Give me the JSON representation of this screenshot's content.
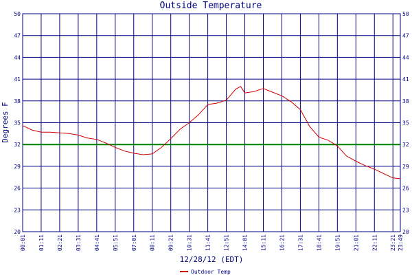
{
  "chart_data": {
    "type": "line",
    "title": "Outside Temperature",
    "xlabel": "12/28/12 (EDT)",
    "ylabel": "Degrees F",
    "ylim": [
      20,
      50
    ],
    "yticks": [
      20,
      23,
      26,
      29,
      32,
      35,
      38,
      41,
      44,
      47,
      50
    ],
    "xticks": [
      "00:01",
      "01:11",
      "02:21",
      "03:31",
      "04:41",
      "05:51",
      "07:01",
      "08:11",
      "09:21",
      "10:31",
      "11:41",
      "12:51",
      "14:01",
      "15:11",
      "16:21",
      "17:31",
      "18:41",
      "19:51",
      "21:01",
      "22:11",
      "23:21",
      "23:49"
    ],
    "grid": true,
    "legend_position": "bottom-left",
    "reference_line": {
      "value": 32,
      "color": "#008000"
    },
    "series": [
      {
        "name": "Outdoor Temp",
        "color": "#cc0000",
        "x": [
          "00:01",
          "00:36",
          "01:11",
          "01:46",
          "02:21",
          "02:56",
          "03:31",
          "04:06",
          "04:41",
          "05:16",
          "05:51",
          "06:26",
          "07:01",
          "07:36",
          "08:11",
          "08:46",
          "09:21",
          "09:56",
          "10:31",
          "11:06",
          "11:41",
          "12:16",
          "12:51",
          "13:26",
          "13:45",
          "14:01",
          "14:36",
          "15:11",
          "15:46",
          "16:21",
          "16:56",
          "17:31",
          "18:06",
          "18:41",
          "19:16",
          "19:51",
          "20:26",
          "21:01",
          "21:36",
          "22:11",
          "22:46",
          "23:21",
          "23:49"
        ],
        "values": [
          34.6,
          34.0,
          33.7,
          33.7,
          33.6,
          33.5,
          33.3,
          32.9,
          32.7,
          32.2,
          31.6,
          31.1,
          30.8,
          30.6,
          30.7,
          31.6,
          32.8,
          34.1,
          35.0,
          36.1,
          37.5,
          37.7,
          38.1,
          39.6,
          40.0,
          39.1,
          39.3,
          39.7,
          39.2,
          38.7,
          37.9,
          36.8,
          34.5,
          33.0,
          32.6,
          31.8,
          30.4,
          29.7,
          29.1,
          28.6,
          28.0,
          27.4,
          27.3
        ]
      }
    ]
  }
}
